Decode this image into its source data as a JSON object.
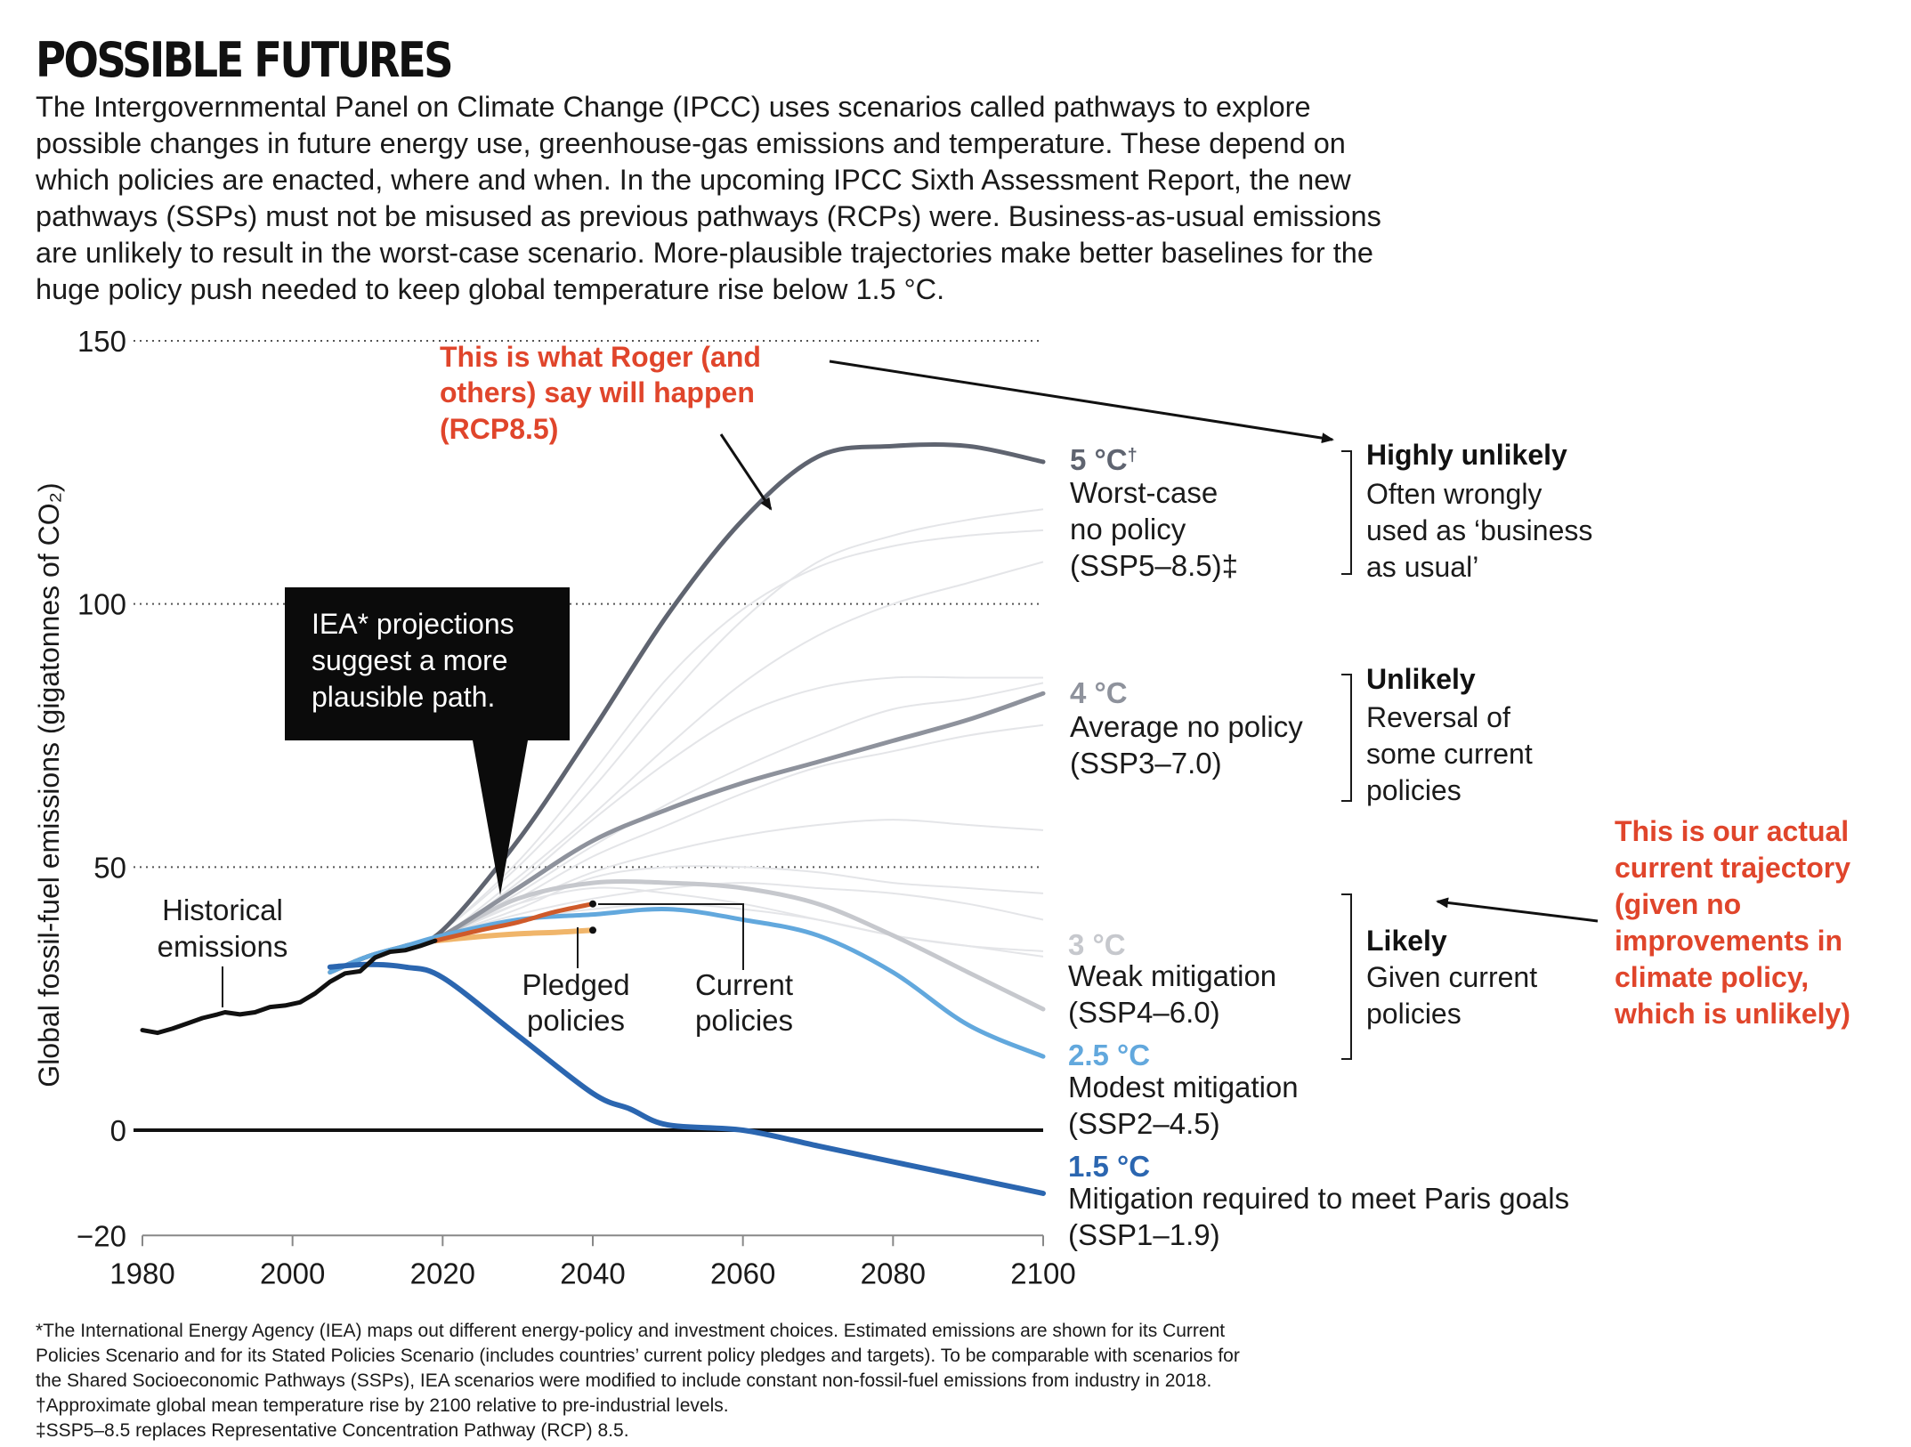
{
  "header": {
    "title": "POSSIBLE FUTURES",
    "intro": "The Intergovernmental Panel on Climate Change (IPCC) uses scenarios called pathways to explore possible changes in future energy use, greenhouse-gas emissions and temperature. These depend on which policies are enacted, where and when. In the upcoming IPCC Sixth Assessment Report, the new pathways (SSPs) must not be misused as previous pathways (RCPs) were. Business-as-usual emissions are unlikely to result in the worst-case scenario. More-plausible trajectories make better baselines for the huge policy push needed to keep global temperature rise below 1.5 °C."
  },
  "chart_data": {
    "type": "line",
    "title": "",
    "xlabel": "",
    "ylabel": "Global fossil-fuel emissions (gigatonnes of CO₂)",
    "xlim": [
      1980,
      2100
    ],
    "ylim": [
      -20,
      150
    ],
    "xticks": [
      1980,
      2000,
      2020,
      2040,
      2060,
      2080,
      2100
    ],
    "yticks": [
      150,
      100,
      50,
      0,
      -20
    ],
    "grid": "dotted horizontal at 150, 100, 50; solid zero line",
    "colors": {
      "ssp585": "#5f6470",
      "ssp370": "#8e929c",
      "ssp460": "#c6c8cd",
      "ssp245": "#62a8dd",
      "ssp119": "#2b66b0",
      "historical": "#111111",
      "current": "#cf5a2a",
      "pledged": "#f0b56a",
      "annotation": "#e0452b"
    },
    "series": [
      {
        "name": "Worst-case no policy (SSP5–8.5)",
        "x": [
          2005,
          2010,
          2015,
          2020,
          2030,
          2040,
          2050,
          2060,
          2070,
          2080,
          2090,
          2100
        ],
        "values": [
          30,
          33,
          35,
          38,
          55,
          76,
          98,
          116,
          128,
          130,
          130,
          127
        ]
      },
      {
        "name": "Average no policy (SSP3–7.0)",
        "x": [
          2005,
          2010,
          2015,
          2020,
          2030,
          2040,
          2050,
          2060,
          2070,
          2080,
          2090,
          2100
        ],
        "values": [
          30,
          33,
          35,
          37,
          46,
          55,
          61,
          66,
          70,
          74,
          78,
          83
        ]
      },
      {
        "name": "Weak mitigation (SSP4–6.0)",
        "x": [
          2005,
          2010,
          2015,
          2020,
          2030,
          2040,
          2050,
          2060,
          2070,
          2080,
          2090,
          2100
        ],
        "values": [
          30,
          33,
          35,
          37,
          44,
          47,
          47,
          46,
          43,
          37,
          30,
          23
        ]
      },
      {
        "name": "Modest mitigation (SSP2–4.5)",
        "x": [
          2005,
          2010,
          2015,
          2020,
          2030,
          2040,
          2050,
          2060,
          2070,
          2080,
          2090,
          2100
        ],
        "values": [
          30,
          33,
          35,
          37,
          40,
          41,
          42,
          40,
          37,
          30,
          20,
          14
        ]
      },
      {
        "name": "Mitigation required to meet Paris goals (SSP1–1.9)",
        "x": [
          2005,
          2010,
          2015,
          2020,
          2030,
          2040,
          2045,
          2050,
          2060,
          2070,
          2080,
          2090,
          2100
        ],
        "values": [
          31,
          31.5,
          31,
          29,
          18,
          7,
          4,
          1,
          0,
          -3,
          -6,
          -9,
          -12
        ]
      },
      {
        "name": "Historical emissions",
        "x": [
          1980,
          1982,
          1984,
          1986,
          1988,
          1990,
          1991,
          1993,
          1995,
          1997,
          1999,
          2001,
          2003,
          2005,
          2007,
          2009,
          2011,
          2013,
          2015,
          2017,
          2019
        ],
        "values": [
          19,
          18.5,
          19.3,
          20.3,
          21.3,
          22,
          22.4,
          22,
          22.4,
          23.4,
          23.7,
          24.3,
          26,
          28.2,
          29.8,
          30.2,
          32.8,
          33.9,
          34.2,
          35,
          36
        ]
      },
      {
        "name": "Current policies",
        "x": [
          2019,
          2025,
          2030,
          2035,
          2040
        ],
        "values": [
          36,
          38,
          39.5,
          41.5,
          43
        ]
      },
      {
        "name": "Pledged policies",
        "x": [
          2019,
          2025,
          2030,
          2035,
          2040
        ],
        "values": [
          36,
          36.8,
          37.3,
          37.6,
          38
        ]
      }
    ],
    "faint_scenarios": [
      [
        30,
        33,
        35,
        38,
        50,
        65,
        82,
        97,
        108,
        113,
        116,
        118
      ],
      [
        30,
        33,
        35,
        38,
        51,
        68,
        86,
        99,
        107,
        111,
        113,
        114
      ],
      [
        30,
        33,
        35,
        37,
        48,
        60,
        73,
        85,
        94,
        100,
        104,
        108
      ],
      [
        30,
        33,
        35,
        37,
        47,
        59,
        70,
        79,
        84,
        86,
        86,
        86
      ],
      [
        30,
        33,
        35,
        37,
        45,
        54,
        62,
        69,
        75,
        80,
        82,
        85
      ],
      [
        30,
        33,
        35,
        37,
        44,
        52,
        58,
        64,
        69,
        72,
        75,
        77
      ],
      [
        30,
        33,
        35,
        37,
        43,
        49,
        53,
        56,
        58,
        59,
        58,
        57
      ],
      [
        30,
        33,
        35,
        37,
        42,
        48,
        50,
        50,
        49,
        47,
        46,
        45
      ],
      [
        30,
        33,
        35,
        37,
        43,
        46,
        45,
        43,
        40,
        37,
        35,
        34
      ],
      [
        30,
        33,
        35,
        37,
        41,
        44,
        46,
        47,
        46,
        45,
        43,
        40
      ],
      [
        30,
        33,
        35,
        37,
        40,
        42,
        43,
        42,
        40,
        37,
        35,
        33
      ]
    ],
    "scenario_labels": [
      {
        "temp": "5 °C",
        "dagger": "†",
        "lines": [
          "Worst-case",
          "no policy",
          "(SSP5–8.5)‡"
        ],
        "color": "#5f6470"
      },
      {
        "temp": "4 °C",
        "lines": [
          "Average no policy",
          "(SSP3–7.0)"
        ],
        "color": "#8e929c"
      },
      {
        "temp": "3 °C",
        "lines": [
          "Weak mitigation",
          "(SSP4–6.0)"
        ],
        "color": "#c6c8cd"
      },
      {
        "temp": "2.5 °C",
        "lines": [
          "Modest mitigation",
          "(SSP2–4.5)"
        ],
        "color": "#62a8dd"
      },
      {
        "temp": "1.5 °C",
        "lines": [
          "Mitigation required to meet Paris goals",
          "(SSP1–1.9)"
        ],
        "color": "#2b66b0"
      }
    ],
    "likelihood": [
      {
        "heading": "Highly unlikely",
        "lines": [
          "Often wrongly",
          "used as ‘business",
          "as usual’"
        ]
      },
      {
        "heading": "Unlikely",
        "lines": [
          "Reversal of",
          "some current",
          "policies"
        ]
      },
      {
        "heading": "Likely",
        "lines": [
          "Given current",
          "policies"
        ]
      }
    ],
    "annotations": {
      "historical": [
        "Historical",
        "emissions"
      ],
      "pledged": [
        "Pledged",
        "policies"
      ],
      "current": [
        "Current",
        "policies"
      ],
      "iea_box": [
        "IEA* projections",
        "suggest a more",
        "plausible path."
      ],
      "roger": [
        "This is what Roger (and",
        "others) say will happen",
        "(RCP8.5)"
      ],
      "actual": [
        "This is our actual",
        "current trajectory",
        "(given no",
        "improvements in",
        "climate policy,",
        "which is unlikely)"
      ]
    }
  },
  "footnotes": [
    "*The International Energy Agency (IEA) maps out different energy-policy and investment choices. Estimated emissions are shown for its Current",
    "Policies Scenario and for its Stated Policies Scenario (includes countries’ current policy pledges and targets). To be comparable with scenarios for",
    "the Shared Socioeconomic Pathways (SSPs), IEA scenarios were modified to include constant non-fossil-fuel emissions from industry in 2018.",
    "†Approximate global mean temperature rise by 2100 relative to pre-industrial levels.",
    "‡SSP5–8.5 replaces Representative Concentration Pathway (RCP) 8.5."
  ]
}
